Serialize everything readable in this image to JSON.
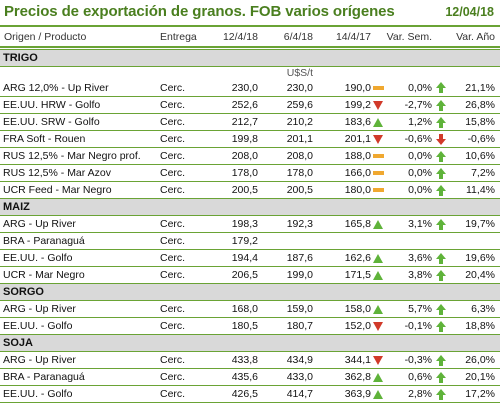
{
  "header": {
    "title": "Precios de exportación de granos. FOB varios orígenes",
    "date": "12/04/18"
  },
  "columns": {
    "product": "Origen / Producto",
    "delivery": "Entrega",
    "d1": "12/4/18",
    "d2": "6/4/18",
    "d3": "14/4/17",
    "weekly": "Var. Sem.",
    "yearly": "Var. Año"
  },
  "unit": "U$S/t",
  "colors": {
    "accent": "#4a7f1f",
    "rule": "#6aa335",
    "up": "#5fb33a",
    "down": "#d13a2a",
    "flat": "#f0a830",
    "section_bg": "#d9d9d9"
  },
  "sections": [
    {
      "name": "TRIGO",
      "rows": [
        {
          "product": "ARG 12,0% - Up River",
          "delivery": "Cerc.",
          "d1": "230,0",
          "d2": "230,0",
          "d3": "190,0",
          "ind": "flat",
          "weekly": "0,0%",
          "arrow": "up",
          "yearly": "21,1%"
        },
        {
          "product": "EE.UU. HRW - Golfo",
          "delivery": "Cerc.",
          "d1": "252,6",
          "d2": "259,6",
          "d3": "199,2",
          "ind": "down",
          "weekly": "-2,7%",
          "arrow": "up",
          "yearly": "26,8%"
        },
        {
          "product": "EE.UU. SRW - Golfo",
          "delivery": "Cerc.",
          "d1": "212,7",
          "d2": "210,2",
          "d3": "183,6",
          "ind": "up",
          "weekly": "1,2%",
          "arrow": "up",
          "yearly": "15,8%"
        },
        {
          "product": "FRA Soft - Rouen",
          "delivery": "Cerc.",
          "d1": "199,8",
          "d2": "201,1",
          "d3": "201,1",
          "ind": "down",
          "weekly": "-0,6%",
          "arrow": "down",
          "yearly": "-0,6%"
        },
        {
          "product": "RUS 12,5% - Mar Negro prof.",
          "delivery": "Cerc.",
          "d1": "208,0",
          "d2": "208,0",
          "d3": "188,0",
          "ind": "flat",
          "weekly": "0,0%",
          "arrow": "up",
          "yearly": "10,6%"
        },
        {
          "product": "RUS 12,5% - Mar Azov",
          "delivery": "Cerc.",
          "d1": "178,0",
          "d2": "178,0",
          "d3": "166,0",
          "ind": "flat",
          "weekly": "0,0%",
          "arrow": "up",
          "yearly": "7,2%"
        },
        {
          "product": "UCR Feed - Mar Negro",
          "delivery": "Cerc.",
          "d1": "200,5",
          "d2": "200,5",
          "d3": "180,0",
          "ind": "flat",
          "weekly": "0,0%",
          "arrow": "up",
          "yearly": "11,4%"
        }
      ]
    },
    {
      "name": "MAIZ",
      "rows": [
        {
          "product": "ARG - Up River",
          "delivery": "Cerc.",
          "d1": "198,3",
          "d2": "192,3",
          "d3": "165,8",
          "ind": "up",
          "weekly": "3,1%",
          "arrow": "up",
          "yearly": "19,7%"
        },
        {
          "product": "BRA - Paranaguá",
          "delivery": "Cerc.",
          "d1": "179,2",
          "d2": "",
          "d3": "",
          "ind": "",
          "weekly": "",
          "arrow": "",
          "yearly": ""
        },
        {
          "product": "EE.UU. - Golfo",
          "delivery": "Cerc.",
          "d1": "194,4",
          "d2": "187,6",
          "d3": "162,6",
          "ind": "up",
          "weekly": "3,6%",
          "arrow": "up",
          "yearly": "19,6%"
        },
        {
          "product": "UCR - Mar Negro",
          "delivery": "Cerc.",
          "d1": "206,5",
          "d2": "199,0",
          "d3": "171,5",
          "ind": "up",
          "weekly": "3,8%",
          "arrow": "up",
          "yearly": "20,4%"
        }
      ]
    },
    {
      "name": "SORGO",
      "rows": [
        {
          "product": "ARG - Up River",
          "delivery": "Cerc.",
          "d1": "168,0",
          "d2": "159,0",
          "d3": "158,0",
          "ind": "up",
          "weekly": "5,7%",
          "arrow": "up",
          "yearly": "6,3%"
        },
        {
          "product": "EE.UU. - Golfo",
          "delivery": "Cerc.",
          "d1": "180,5",
          "d2": "180,7",
          "d3": "152,0",
          "ind": "down",
          "weekly": "-0,1%",
          "arrow": "up",
          "yearly": "18,8%"
        }
      ]
    },
    {
      "name": "SOJA",
      "rows": [
        {
          "product": "ARG - Up River",
          "delivery": "Cerc.",
          "d1": "433,8",
          "d2": "434,9",
          "d3": "344,1",
          "ind": "down",
          "weekly": "-0,3%",
          "arrow": "up",
          "yearly": "26,0%"
        },
        {
          "product": "BRA - Paranaguá",
          "delivery": "Cerc.",
          "d1": "435,6",
          "d2": "433,0",
          "d3": "362,8",
          "ind": "up",
          "weekly": "0,6%",
          "arrow": "up",
          "yearly": "20,1%"
        },
        {
          "product": "EE.UU. - Golfo",
          "delivery": "Cerc.",
          "d1": "426,5",
          "d2": "414,7",
          "d3": "363,9",
          "ind": "up",
          "weekly": "2,8%",
          "arrow": "up",
          "yearly": "17,2%"
        }
      ]
    }
  ]
}
